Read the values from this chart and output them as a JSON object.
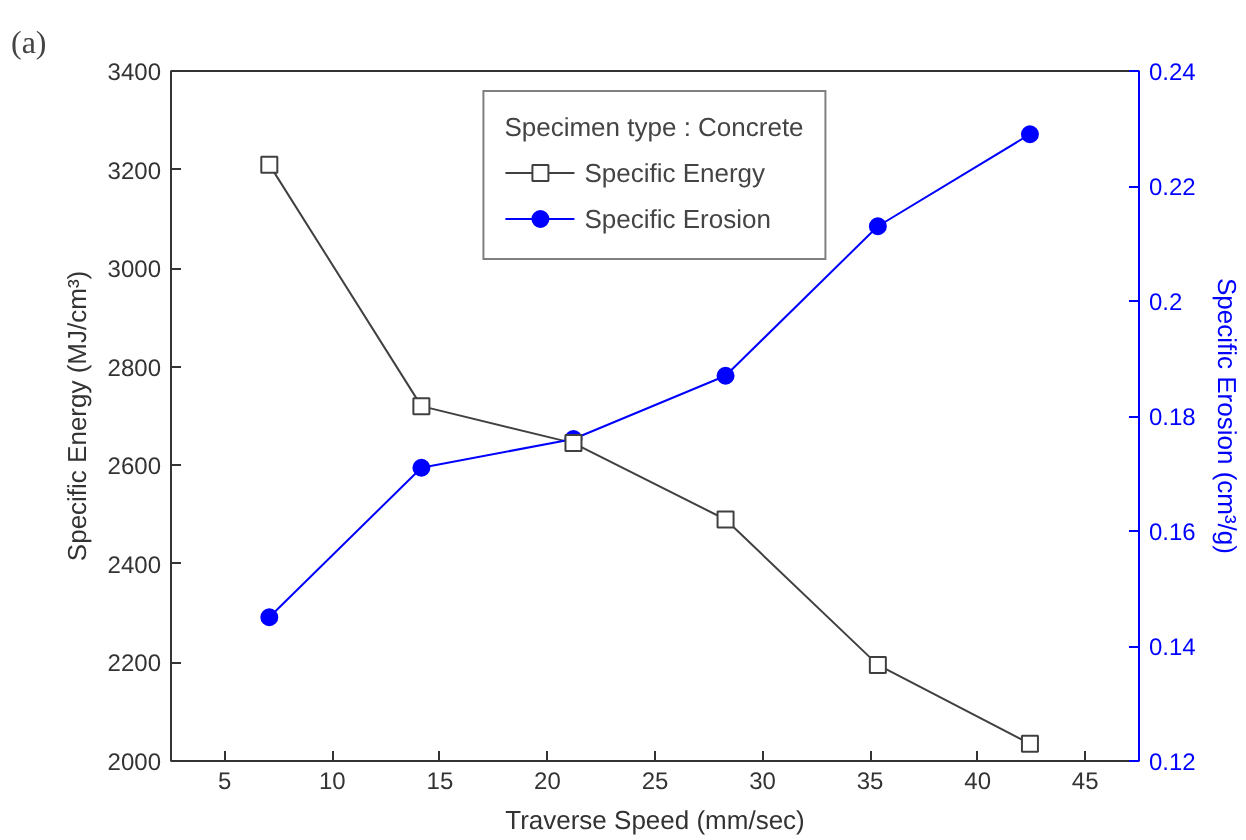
{
  "chart_data": {
    "type": "line",
    "xlabel": "Traverse Speed (mm/sec)",
    "ylabel": "Specific Energy (MJ/cm³)",
    "y2label": "Specific Erosion (cm³/g)",
    "legend_title": "Specimen type : Concrete",
    "annotations": [
      "(a)"
    ],
    "x": [
      7.07,
      14.14,
      21.21,
      28.28,
      35.36,
      42.43
    ],
    "series": [
      {
        "name": "Specific Energy",
        "color": "#404040",
        "marker": "square",
        "values": [
          3210,
          2720,
          2645,
          2490,
          2195,
          2035
        ]
      },
      {
        "name": "Specific Erosion",
        "color": "#0000ff",
        "marker": "circle",
        "axis": "y2",
        "values": [
          0.145,
          0.171,
          0.176,
          0.187,
          0.213,
          0.229
        ]
      }
    ],
    "xlim": [
      2.5,
      47.5
    ],
    "xticks": [
      5,
      10,
      15,
      20,
      25,
      30,
      35,
      40,
      45
    ],
    "ylim": [
      2000,
      3400
    ],
    "yticks": [
      2000,
      2200,
      2400,
      2600,
      2800,
      3000,
      3200,
      3400
    ],
    "y2lim": [
      0.12,
      0.24
    ],
    "y2ticks": [
      0.12,
      0.14,
      0.16,
      0.18,
      0.2,
      0.22,
      0.24
    ],
    "grid": false,
    "legend": "top"
  }
}
